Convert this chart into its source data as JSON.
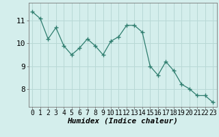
{
  "x": [
    0,
    1,
    2,
    3,
    4,
    5,
    6,
    7,
    8,
    9,
    10,
    11,
    12,
    13,
    14,
    15,
    16,
    17,
    18,
    19,
    20,
    21,
    22,
    23
  ],
  "y": [
    11.4,
    11.1,
    10.2,
    10.7,
    9.9,
    9.5,
    9.8,
    10.2,
    9.9,
    9.5,
    10.1,
    10.3,
    10.8,
    10.8,
    10.5,
    9.0,
    8.6,
    9.2,
    8.8,
    8.2,
    8.0,
    7.7,
    7.7,
    7.4
  ],
  "line_color": "#2e7d6e",
  "marker": "+",
  "marker_size": 4,
  "bg_color": "#d4eeec",
  "grid_color": "#b8d8d5",
  "xlabel": "Humidex (Indice chaleur)",
  "xlabel_fontsize": 8,
  "ylabel_ticks": [
    8,
    9,
    10,
    11
  ],
  "ylim": [
    7.2,
    11.8
  ],
  "xlim": [
    -0.5,
    23.5
  ],
  "tick_fontsize": 7,
  "spine_color": "#4a9a8a"
}
